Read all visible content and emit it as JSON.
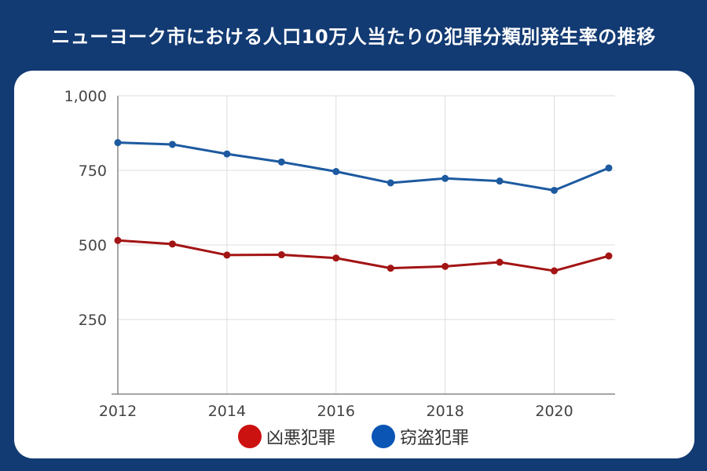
{
  "title": "ニューヨーク市における人口10万人当たりの犯罪分類別発生率の推移",
  "colors": {
    "background": "#123a73",
    "card": "#ffffff",
    "violent": "#a31414",
    "violent_legend": "#cc1111",
    "theft": "#1d5aa0",
    "theft_legend": "#0b55b5",
    "grid": "#dddddd",
    "axis": "#888888",
    "tick_text": "#444444"
  },
  "chart_data": {
    "type": "line",
    "x": [
      2012,
      2013,
      2014,
      2015,
      2016,
      2017,
      2018,
      2019,
      2020,
      2021
    ],
    "x_tick_labels": [
      "2012",
      "2014",
      "2016",
      "2018",
      "2020"
    ],
    "y_tick_labels": [
      "1,000",
      "750",
      "500",
      "250"
    ],
    "ylim": [
      0,
      1000
    ],
    "xlim": [
      2012,
      2021
    ],
    "grid": true,
    "legend_position": "bottom",
    "series": [
      {
        "name": "凶悪犯罪",
        "color": "#a31414",
        "values": [
          515,
          503,
          466,
          467,
          456,
          422,
          428,
          442,
          413,
          463
        ]
      },
      {
        "name": "窃盗犯罪",
        "color": "#1d5aa0",
        "values": [
          843,
          837,
          805,
          778,
          746,
          708,
          723,
          714,
          683,
          758
        ]
      }
    ]
  },
  "legend": [
    {
      "label": "凶悪犯罪",
      "color": "#cc1111"
    },
    {
      "label": "窃盗犯罪",
      "color": "#0b55b5"
    }
  ]
}
